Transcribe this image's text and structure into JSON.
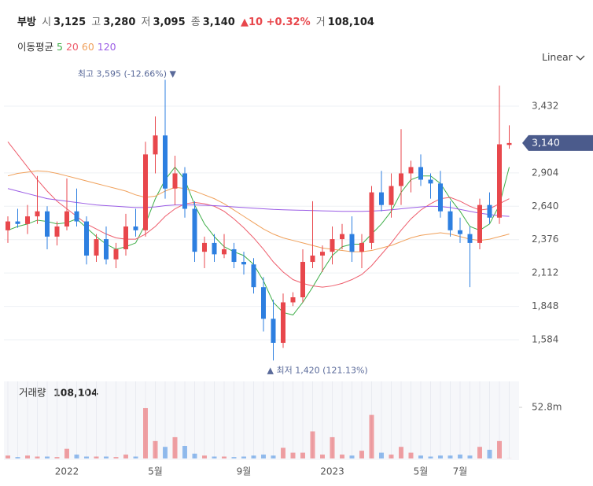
{
  "header": {
    "name": "부방",
    "open_label": "시",
    "open": "3,125",
    "high_label": "고",
    "high": "3,280",
    "low_label": "저",
    "low": "3,095",
    "close_label": "종",
    "close": "3,140",
    "change": "▲10 +0.32%",
    "volume_label": "거",
    "volume": "108,104"
  },
  "chart_data": {
    "type": "candlestick",
    "categories": [
      null,
      null,
      null,
      null,
      null,
      null,
      "2022",
      null,
      null,
      null,
      null,
      null,
      null,
      null,
      null,
      "5월",
      null,
      null,
      null,
      null,
      null,
      null,
      null,
      null,
      "9월",
      null,
      null,
      null,
      null,
      null,
      null,
      null,
      null,
      "2023",
      null,
      null,
      null,
      null,
      null,
      null,
      null,
      null,
      "5월",
      null,
      null,
      null,
      "7월",
      null,
      null,
      null,
      null,
      null
    ],
    "open": [
      2450,
      2520,
      2500,
      2560,
      2600,
      2400,
      2480,
      2600,
      2520,
      2250,
      2380,
      2220,
      2300,
      2480,
      2450,
      3050,
      3200,
      2780,
      2900,
      2620,
      2280,
      2350,
      2260,
      2300,
      2200,
      2180,
      2000,
      1750,
      1560,
      1880,
      1920,
      2200,
      2250,
      2280,
      2380,
      2420,
      2280,
      2350,
      2750,
      2650,
      2800,
      2900,
      2950,
      2850,
      2820,
      2600,
      2450,
      2420,
      2350,
      2650,
      2550,
      3125
    ],
    "high": [
      2560,
      2620,
      2650,
      2880,
      2640,
      2520,
      2860,
      2780,
      2560,
      2420,
      2480,
      2350,
      2580,
      2620,
      3150,
      3350,
      3640,
      3040,
      2950,
      2680,
      2400,
      2420,
      2420,
      2350,
      2280,
      2230,
      2080,
      1900,
      1950,
      1960,
      2300,
      2680,
      2330,
      2480,
      2500,
      2560,
      2420,
      2800,
      2920,
      2900,
      3250,
      3000,
      3050,
      2900,
      2920,
      2680,
      2550,
      2480,
      2700,
      2750,
      3595,
      3280
    ],
    "low": [
      2350,
      2470,
      2420,
      2500,
      2300,
      2330,
      2450,
      2480,
      2180,
      2200,
      2180,
      2150,
      2250,
      2400,
      2400,
      2900,
      2700,
      2650,
      2550,
      2200,
      2150,
      2200,
      2230,
      2150,
      2100,
      1950,
      1650,
      1420,
      1520,
      1850,
      1880,
      2150,
      2120,
      2180,
      2300,
      2200,
      2150,
      2300,
      2600,
      2550,
      2650,
      2750,
      2800,
      2700,
      2550,
      2400,
      2350,
      2000,
      2300,
      2500,
      2500,
      3095
    ],
    "close": [
      2520,
      2500,
      2560,
      2600,
      2400,
      2480,
      2600,
      2520,
      2250,
      2380,
      2220,
      2300,
      2480,
      2450,
      3050,
      3200,
      2780,
      2900,
      2620,
      2280,
      2350,
      2260,
      2300,
      2200,
      2180,
      2000,
      1750,
      1560,
      1880,
      1920,
      2200,
      2250,
      2280,
      2380,
      2420,
      2280,
      2350,
      2750,
      2650,
      2800,
      2900,
      2950,
      2850,
      2820,
      2600,
      2450,
      2420,
      2350,
      2650,
      2550,
      3130,
      3140
    ],
    "up_color": "#e8474c",
    "down_color": "#2d7fe0",
    "ylim": [
      1348,
      3724
    ],
    "yticks": [
      {
        "value": 1584,
        "label": "1,584"
      },
      {
        "value": 1848,
        "label": "1,848"
      },
      {
        "value": 2112,
        "label": "2,112"
      },
      {
        "value": 2376,
        "label": "2,376"
      },
      {
        "value": 2640,
        "label": "2,640"
      },
      {
        "value": 2904,
        "label": "2,904"
      },
      {
        "value": 3432,
        "label": "3,432"
      }
    ],
    "grid": true,
    "scale": "Linear",
    "current_price": {
      "value": 3140,
      "label": "3,140"
    },
    "annotations": [
      "최고 3,595 (-12.66%) ▼",
      "▲ 최저 1,420 (121.13%)"
    ],
    "moving_averages_title": "이동평균",
    "moving_averages": [
      {
        "name": "5",
        "color": "#3fae49",
        "values": [
          2450,
          2480,
          2500,
          2530,
          2520,
          2500,
          2510,
          2540,
          2470,
          2400,
          2340,
          2300,
          2320,
          2350,
          2500,
          2700,
          2850,
          2950,
          2850,
          2650,
          2500,
          2400,
          2320,
          2280,
          2250,
          2180,
          2050,
          1880,
          1800,
          1780,
          1880,
          2000,
          2130,
          2250,
          2320,
          2340,
          2340,
          2420,
          2500,
          2600,
          2750,
          2850,
          2880,
          2880,
          2820,
          2700,
          2600,
          2480,
          2450,
          2500,
          2650,
          2950
        ]
      },
      {
        "name": "20",
        "color": "#ee5d6c",
        "values": [
          3150,
          3050,
          2950,
          2850,
          2760,
          2680,
          2620,
          2560,
          2500,
          2460,
          2420,
          2390,
          2380,
          2380,
          2420,
          2480,
          2560,
          2620,
          2660,
          2670,
          2660,
          2640,
          2600,
          2540,
          2470,
          2390,
          2300,
          2200,
          2120,
          2060,
          2030,
          2010,
          2000,
          2010,
          2030,
          2060,
          2100,
          2170,
          2260,
          2350,
          2450,
          2540,
          2610,
          2660,
          2700,
          2710,
          2680,
          2640,
          2610,
          2620,
          2660,
          2700
        ]
      },
      {
        "name": "60",
        "color": "#f0a05a",
        "values": [
          2880,
          2900,
          2910,
          2920,
          2915,
          2900,
          2880,
          2860,
          2840,
          2820,
          2800,
          2780,
          2760,
          2730,
          2710,
          2720,
          2760,
          2790,
          2780,
          2760,
          2730,
          2700,
          2660,
          2610,
          2560,
          2510,
          2460,
          2420,
          2390,
          2370,
          2350,
          2330,
          2310,
          2300,
          2290,
          2280,
          2280,
          2290,
          2310,
          2330,
          2360,
          2390,
          2410,
          2420,
          2430,
          2420,
          2400,
          2380,
          2370,
          2380,
          2400,
          2420
        ]
      },
      {
        "name": "120",
        "color": "#9b5de5",
        "values": [
          2780,
          2760,
          2740,
          2720,
          2700,
          2690,
          2680,
          2670,
          2660,
          2650,
          2645,
          2640,
          2635,
          2630,
          2630,
          2635,
          2645,
          2650,
          2650,
          2650,
          2648,
          2645,
          2640,
          2635,
          2630,
          2625,
          2620,
          2615,
          2612,
          2610,
          2608,
          2606,
          2604,
          2602,
          2600,
          2600,
          2600,
          2602,
          2606,
          2612,
          2620,
          2628,
          2635,
          2640,
          2638,
          2630,
          2615,
          2600,
          2585,
          2575,
          2565,
          2560
        ]
      }
    ],
    "volume": {
      "title": "거래량",
      "last": "108,104",
      "ylim": [
        0,
        79600000
      ],
      "yticks": [
        {
          "value": 52800000,
          "label": "52.8m"
        }
      ],
      "values": [
        3000000,
        1500000,
        3000000,
        2000000,
        2000000,
        1500000,
        10000000,
        4000000,
        2000000,
        2000000,
        2000000,
        1500000,
        4000000,
        2000000,
        52000000,
        18000000,
        12000000,
        22000000,
        13000000,
        5000000,
        3000000,
        2000000,
        2000000,
        1500000,
        2000000,
        3000000,
        4000000,
        3000000,
        11000000,
        6000000,
        6000000,
        28000000,
        4000000,
        22000000,
        4000000,
        3000000,
        8000000,
        45000000,
        6000000,
        4000000,
        12000000,
        6000000,
        3000000,
        2000000,
        3000000,
        3000000,
        4000000,
        3000000,
        12000000,
        9000000,
        18000000,
        108104
      ]
    }
  }
}
